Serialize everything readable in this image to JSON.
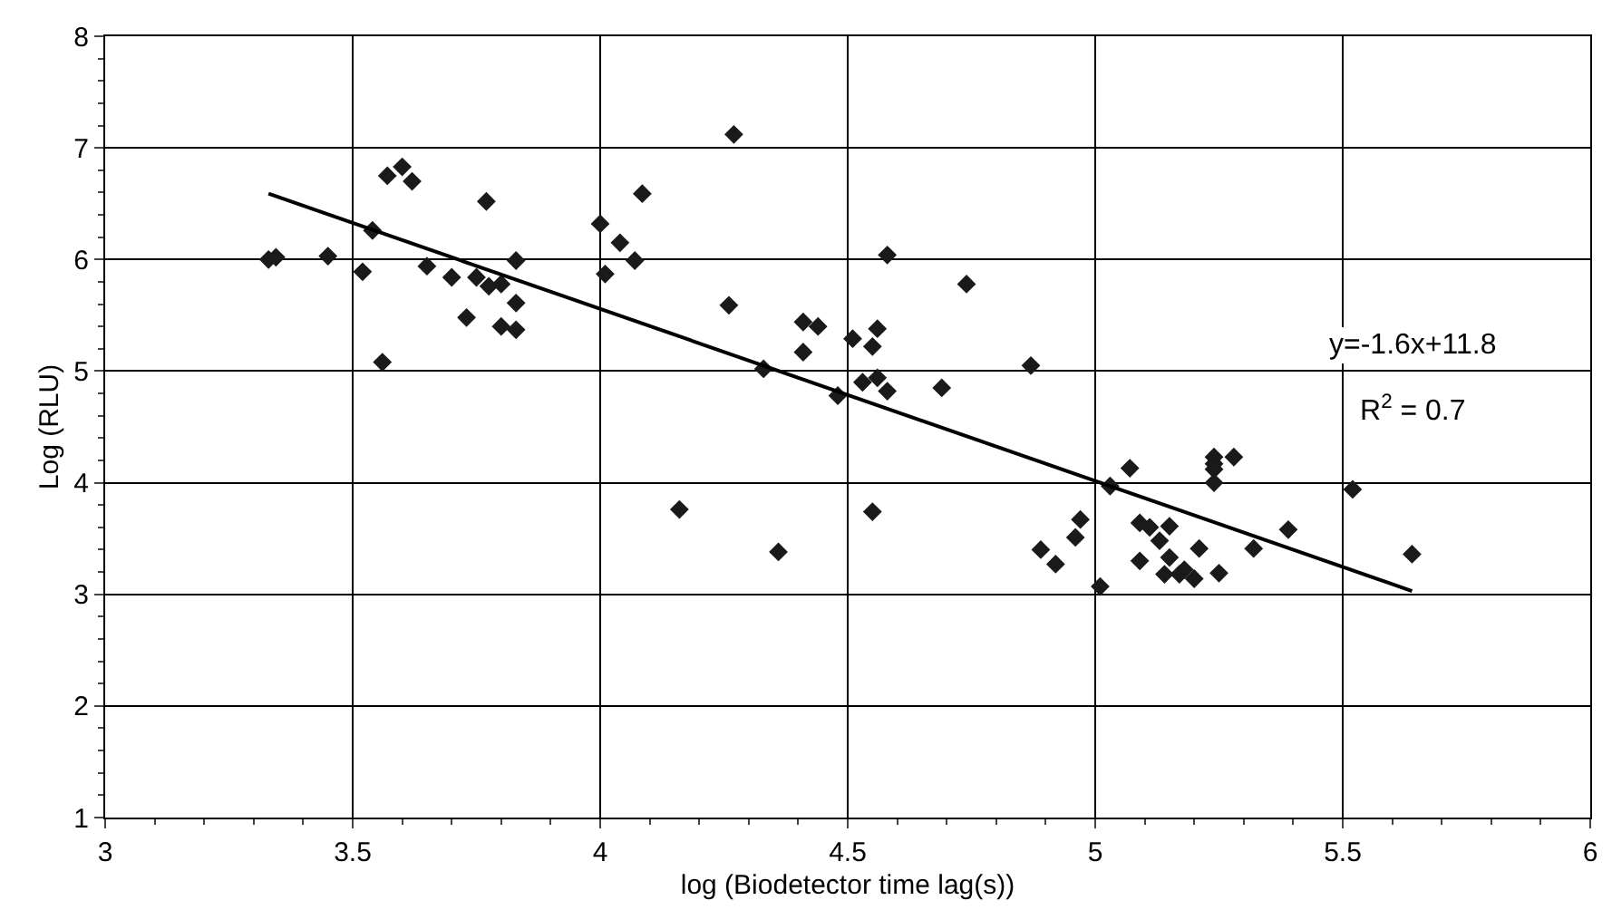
{
  "chart_data": {
    "type": "scatter",
    "xlabel": "log (Biodetector time lag(s))",
    "ylabel": "Log (RLU)",
    "annotations": [
      "y=-1.6x+11.8",
      "R$^{2}$ = 0.7"
    ],
    "series": [
      {
        "color": "#1a1a1a",
        "marker": "diamond",
        "x": [
          3.33,
          3.345,
          3.45,
          3.52,
          3.54,
          3.57,
          3.6,
          3.62,
          3.56,
          3.65,
          3.7,
          3.73,
          3.75,
          3.775,
          3.77,
          3.8,
          3.8,
          3.83,
          3.83,
          3.83,
          4.27,
          4.085,
          4.0,
          4.04,
          4.07,
          4.01,
          4.26,
          4.41,
          4.44,
          4.41,
          4.33,
          4.51,
          4.56,
          4.55,
          4.58,
          4.74,
          4.53,
          4.56,
          4.58,
          4.48,
          4.69,
          4.87,
          4.16,
          4.36,
          4.55,
          5.07,
          5.03,
          4.97,
          4.96,
          4.89,
          4.92,
          5.01,
          5.24,
          5.24,
          5.24,
          5.24,
          5.28,
          5.52,
          5.64,
          5.39,
          5.32,
          5.25,
          5.21,
          5.2,
          5.18,
          5.17,
          5.14,
          5.15,
          5.13,
          5.15,
          5.11,
          5.09,
          5.09
        ],
        "values": [
          6.0,
          6.02,
          6.03,
          5.89,
          6.26,
          6.75,
          6.83,
          6.7,
          5.08,
          5.94,
          5.84,
          5.48,
          5.84,
          5.76,
          6.52,
          5.78,
          5.4,
          5.99,
          5.61,
          5.37,
          7.12,
          6.59,
          6.32,
          6.15,
          5.99,
          5.87,
          5.59,
          5.44,
          5.4,
          5.17,
          5.02,
          5.29,
          5.38,
          5.22,
          6.04,
          5.78,
          4.9,
          4.94,
          4.82,
          4.78,
          4.85,
          5.05,
          3.76,
          3.38,
          3.74,
          4.13,
          3.97,
          3.67,
          3.51,
          3.4,
          3.27,
          3.07,
          4.23,
          4.17,
          4.12,
          4.0,
          4.23,
          3.94,
          3.36,
          3.58,
          3.41,
          3.19,
          3.41,
          3.14,
          3.22,
          3.18,
          3.18,
          3.33,
          3.48,
          3.61,
          3.6,
          3.64,
          3.3
        ]
      },
      {
        "type": "line",
        "color": "#000000",
        "marker": "none",
        "line_style": "solid",
        "x": [
          3.33,
          5.64
        ],
        "values": [
          6.59,
          3.03
        ]
      }
    ],
    "xlim": [
      3,
      6
    ],
    "xticks": [
      3,
      3.5,
      4,
      4.5,
      5,
      5.5,
      6
    ],
    "ylim": [
      1,
      8
    ],
    "yticks": [
      1,
      2,
      3,
      4,
      5,
      6,
      7,
      8
    ],
    "grid": true,
    "legend": false
  }
}
